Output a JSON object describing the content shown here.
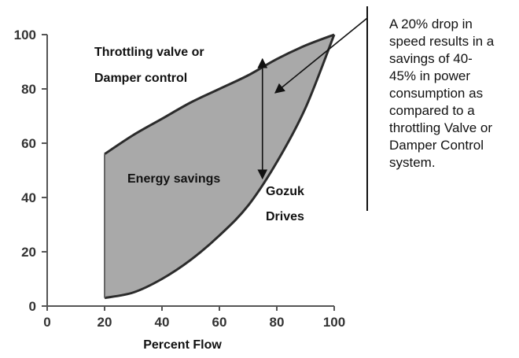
{
  "chart_data": {
    "type": "area",
    "title": "",
    "xlabel": "Percent Flow",
    "ylabel": "",
    "xlim": [
      0,
      100
    ],
    "ylim": [
      0,
      100
    ],
    "x_ticks": [
      "0",
      "20",
      "40",
      "60",
      "80",
      "100"
    ],
    "y_ticks": [
      "0",
      "20",
      "40",
      "60",
      "80",
      "100"
    ],
    "grid": false,
    "series": [
      {
        "name": "Throttling valve or Damper control",
        "x": [
          20,
          30,
          40,
          50,
          60,
          70,
          80,
          90,
          100
        ],
        "y": [
          56,
          63,
          69,
          75,
          80,
          85,
          91,
          96,
          100
        ]
      },
      {
        "name": "Gozuk Drives",
        "x": [
          20,
          30,
          40,
          50,
          60,
          70,
          80,
          90,
          100
        ],
        "y": [
          3,
          5,
          10,
          17,
          26,
          37,
          53,
          73,
          100
        ]
      }
    ],
    "fill_between": {
      "label": "Energy savings",
      "color": "#a9a9a9"
    },
    "annotations": {
      "upper_label_line1": "Throttling valve or",
      "upper_label_line2": "Damper control",
      "lower_label_line1": "Gozuk",
      "lower_label_line2": "Drives",
      "fill_label": "Energy savings",
      "note_lines": [
        "A 20% drop in",
        "speed results in a",
        "savings of 40-",
        "45% in power",
        "consumption as",
        "compared to a",
        "throttling Valve or",
        "Damper Control",
        "system."
      ],
      "double_arrow_x": 75,
      "double_arrow_y": [
        91,
        47
      ]
    },
    "colors": {
      "curve": "#2b2b2b",
      "fill": "#a9a9a9",
      "axis": "#555555"
    }
  }
}
